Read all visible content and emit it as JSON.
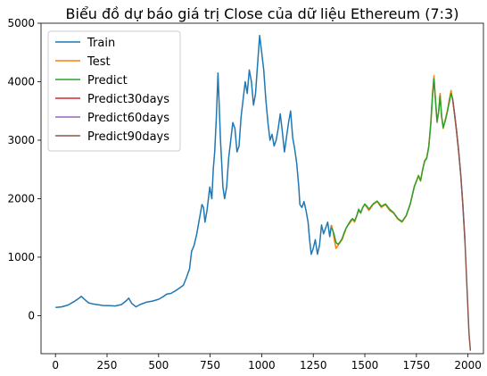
{
  "chart_data": {
    "type": "line",
    "title": "Biểu đồ dự báo giá trị Close của dữ liệu Ethereum (7:3)",
    "xlabel": "",
    "ylabel": "",
    "xlim": [
      -70,
      2075
    ],
    "ylim": [
      -650,
      5000
    ],
    "xticks": [
      0,
      250,
      500,
      750,
      1000,
      1250,
      1500,
      1750,
      2000
    ],
    "yticks": [
      0,
      1000,
      2000,
      3000,
      4000,
      5000
    ],
    "legend_position": "top-left",
    "grid": false,
    "series": [
      {
        "name": "Train",
        "color": "#1f77b4",
        "points": [
          [
            0,
            140
          ],
          [
            30,
            150
          ],
          [
            60,
            180
          ],
          [
            90,
            240
          ],
          [
            115,
            300
          ],
          [
            125,
            330
          ],
          [
            140,
            280
          ],
          [
            160,
            220
          ],
          [
            180,
            200
          ],
          [
            200,
            190
          ],
          [
            230,
            175
          ],
          [
            260,
            170
          ],
          [
            290,
            165
          ],
          [
            320,
            190
          ],
          [
            345,
            260
          ],
          [
            355,
            300
          ],
          [
            370,
            210
          ],
          [
            390,
            150
          ],
          [
            410,
            190
          ],
          [
            440,
            230
          ],
          [
            470,
            250
          ],
          [
            500,
            280
          ],
          [
            520,
            320
          ],
          [
            540,
            370
          ],
          [
            560,
            380
          ],
          [
            580,
            420
          ],
          [
            600,
            470
          ],
          [
            620,
            520
          ],
          [
            635,
            650
          ],
          [
            650,
            800
          ],
          [
            660,
            1100
          ],
          [
            672,
            1200
          ],
          [
            685,
            1400
          ],
          [
            700,
            1700
          ],
          [
            710,
            1900
          ],
          [
            718,
            1850
          ],
          [
            725,
            1600
          ],
          [
            735,
            1800
          ],
          [
            748,
            2200
          ],
          [
            758,
            2000
          ],
          [
            765,
            2500
          ],
          [
            772,
            2800
          ],
          [
            780,
            3400
          ],
          [
            788,
            4150
          ],
          [
            795,
            3500
          ],
          [
            800,
            3000
          ],
          [
            806,
            2600
          ],
          [
            812,
            2200
          ],
          [
            820,
            2000
          ],
          [
            830,
            2200
          ],
          [
            840,
            2700
          ],
          [
            850,
            3000
          ],
          [
            860,
            3300
          ],
          [
            870,
            3200
          ],
          [
            880,
            2800
          ],
          [
            890,
            2900
          ],
          [
            900,
            3400
          ],
          [
            910,
            3700
          ],
          [
            920,
            4000
          ],
          [
            930,
            3800
          ],
          [
            940,
            4200
          ],
          [
            950,
            4000
          ],
          [
            960,
            3600
          ],
          [
            970,
            3800
          ],
          [
            980,
            4300
          ],
          [
            990,
            4790
          ],
          [
            1000,
            4500
          ],
          [
            1010,
            4200
          ],
          [
            1020,
            3700
          ],
          [
            1030,
            3300
          ],
          [
            1040,
            3000
          ],
          [
            1050,
            3100
          ],
          [
            1060,
            2900
          ],
          [
            1070,
            3000
          ],
          [
            1080,
            3200
          ],
          [
            1090,
            3450
          ],
          [
            1100,
            3150
          ],
          [
            1110,
            2800
          ],
          [
            1120,
            3050
          ],
          [
            1130,
            3300
          ],
          [
            1140,
            3500
          ],
          [
            1150,
            3050
          ],
          [
            1160,
            2850
          ],
          [
            1170,
            2600
          ],
          [
            1180,
            2200
          ],
          [
            1185,
            1900
          ],
          [
            1195,
            1850
          ],
          [
            1205,
            1950
          ],
          [
            1215,
            1800
          ],
          [
            1225,
            1600
          ],
          [
            1232,
            1300
          ],
          [
            1240,
            1050
          ],
          [
            1250,
            1150
          ],
          [
            1260,
            1300
          ],
          [
            1270,
            1050
          ],
          [
            1280,
            1200
          ],
          [
            1290,
            1550
          ],
          [
            1300,
            1400
          ],
          [
            1310,
            1500
          ],
          [
            1320,
            1600
          ],
          [
            1330,
            1350
          ],
          [
            1338,
            1550
          ]
        ]
      },
      {
        "name": "Test",
        "color": "#ff7f0e",
        "points": [
          [
            1338,
            1550
          ],
          [
            1345,
            1450
          ],
          [
            1352,
            1300
          ],
          [
            1360,
            1150
          ],
          [
            1370,
            1200
          ],
          [
            1380,
            1250
          ],
          [
            1390,
            1300
          ],
          [
            1400,
            1400
          ],
          [
            1410,
            1500
          ],
          [
            1420,
            1550
          ],
          [
            1430,
            1600
          ],
          [
            1440,
            1650
          ],
          [
            1450,
            1600
          ],
          [
            1460,
            1700
          ],
          [
            1470,
            1800
          ],
          [
            1480,
            1750
          ],
          [
            1490,
            1850
          ],
          [
            1500,
            1900
          ],
          [
            1510,
            1850
          ],
          [
            1520,
            1800
          ],
          [
            1540,
            1900
          ],
          [
            1560,
            1950
          ],
          [
            1580,
            1850
          ],
          [
            1600,
            1900
          ],
          [
            1620,
            1800
          ],
          [
            1640,
            1750
          ],
          [
            1660,
            1650
          ],
          [
            1680,
            1600
          ],
          [
            1700,
            1700
          ],
          [
            1720,
            1900
          ],
          [
            1740,
            2200
          ],
          [
            1760,
            2400
          ],
          [
            1770,
            2300
          ],
          [
            1780,
            2500
          ],
          [
            1790,
            2650
          ],
          [
            1800,
            2700
          ],
          [
            1810,
            2900
          ],
          [
            1820,
            3300
          ],
          [
            1828,
            3800
          ],
          [
            1835,
            4100
          ],
          [
            1842,
            3700
          ],
          [
            1850,
            3300
          ],
          [
            1858,
            3500
          ],
          [
            1865,
            3800
          ],
          [
            1872,
            3400
          ],
          [
            1880,
            3200
          ],
          [
            1890,
            3350
          ],
          [
            1900,
            3500
          ],
          [
            1910,
            3700
          ],
          [
            1918,
            3850
          ],
          [
            1925,
            3700
          ]
        ]
      },
      {
        "name": "Predict",
        "color": "#2ca02c",
        "points": [
          [
            1340,
            1500
          ],
          [
            1350,
            1400
          ],
          [
            1360,
            1250
          ],
          [
            1370,
            1220
          ],
          [
            1380,
            1260
          ],
          [
            1390,
            1320
          ],
          [
            1400,
            1420
          ],
          [
            1410,
            1500
          ],
          [
            1420,
            1560
          ],
          [
            1430,
            1620
          ],
          [
            1440,
            1660
          ],
          [
            1450,
            1620
          ],
          [
            1460,
            1700
          ],
          [
            1470,
            1820
          ],
          [
            1480,
            1760
          ],
          [
            1490,
            1850
          ],
          [
            1500,
            1910
          ],
          [
            1510,
            1870
          ],
          [
            1520,
            1820
          ],
          [
            1540,
            1910
          ],
          [
            1560,
            1960
          ],
          [
            1580,
            1870
          ],
          [
            1600,
            1910
          ],
          [
            1620,
            1820
          ],
          [
            1640,
            1760
          ],
          [
            1660,
            1660
          ],
          [
            1680,
            1610
          ],
          [
            1700,
            1710
          ],
          [
            1720,
            1910
          ],
          [
            1740,
            2210
          ],
          [
            1760,
            2390
          ],
          [
            1770,
            2310
          ],
          [
            1780,
            2490
          ],
          [
            1790,
            2640
          ],
          [
            1800,
            2690
          ],
          [
            1810,
            2880
          ],
          [
            1820,
            3280
          ],
          [
            1828,
            3750
          ],
          [
            1835,
            4050
          ],
          [
            1842,
            3720
          ],
          [
            1850,
            3320
          ],
          [
            1858,
            3480
          ],
          [
            1865,
            3760
          ],
          [
            1872,
            3420
          ],
          [
            1880,
            3220
          ],
          [
            1890,
            3330
          ],
          [
            1900,
            3480
          ],
          [
            1910,
            3660
          ],
          [
            1918,
            3800
          ],
          [
            1925,
            3720
          ]
        ]
      },
      {
        "name": "Predict30days",
        "color": "#d62728",
        "points": [
          [
            1925,
            3720
          ],
          [
            1935,
            3450
          ],
          [
            1945,
            3150
          ],
          [
            1955,
            2800
          ]
        ]
      },
      {
        "name": "Predict60days",
        "color": "#9467bd",
        "points": [
          [
            1955,
            2800
          ],
          [
            1965,
            2400
          ],
          [
            1975,
            1900
          ],
          [
            1985,
            1300
          ]
        ]
      },
      {
        "name": "Predict90days",
        "color": "#8c564b",
        "points": [
          [
            1925,
            3720
          ],
          [
            1935,
            3450
          ],
          [
            1945,
            3150
          ],
          [
            1955,
            2800
          ],
          [
            1965,
            2400
          ],
          [
            1975,
            1900
          ],
          [
            1985,
            1300
          ],
          [
            1995,
            500
          ],
          [
            2005,
            -300
          ],
          [
            2012,
            -600
          ]
        ]
      }
    ]
  }
}
